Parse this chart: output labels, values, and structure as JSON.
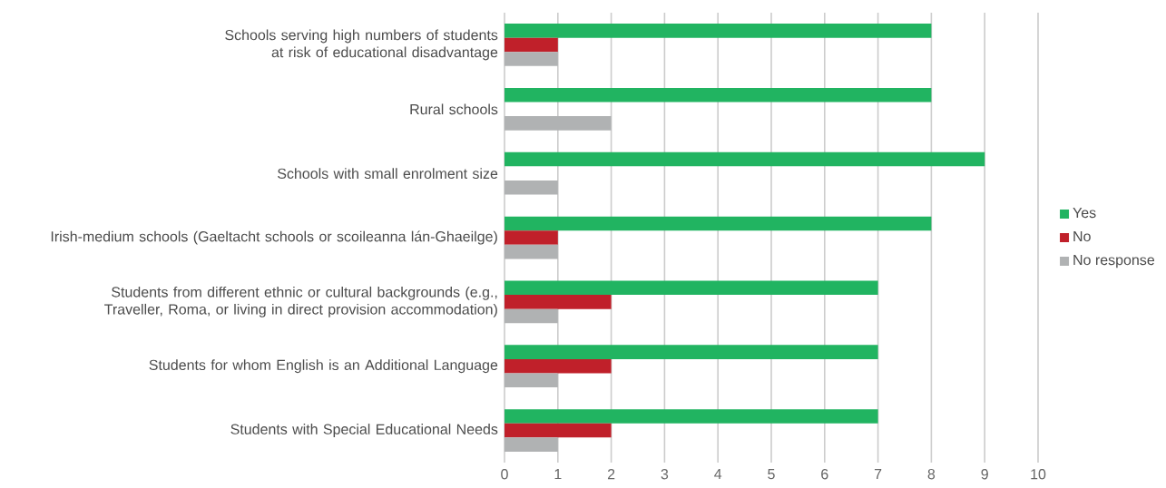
{
  "chart_data": {
    "type": "bar",
    "orientation": "horizontal",
    "categories": [
      "Schools serving high numbers of students at risk of educational disadvantage",
      "Rural schools",
      "Schools with small enrolment size",
      "Irish-medium schools (Gaeltacht schools or scoileanna lán-Ghaeilge)",
      "Students from different ethnic or cultural backgrounds (e.g., Traveller, Roma, or living in direct provision accommodation)",
      "Students for whom English is an Additional Language",
      "Students with Special Educational Needs"
    ],
    "series": [
      {
        "name": "Yes",
        "color": "#21b461",
        "values": [
          8,
          8,
          9,
          8,
          7,
          7,
          7
        ]
      },
      {
        "name": "No",
        "color": "#c0202a",
        "values": [
          1,
          0,
          0,
          1,
          2,
          2,
          2
        ]
      },
      {
        "name": "No response",
        "color": "#b0b2b3",
        "values": [
          1,
          2,
          1,
          1,
          1,
          1,
          1
        ]
      }
    ],
    "xlim": [
      0,
      10
    ],
    "xticks": [
      0,
      1,
      2,
      3,
      4,
      5,
      6,
      7,
      8,
      9,
      10
    ],
    "grid": "x",
    "legend": "right"
  }
}
